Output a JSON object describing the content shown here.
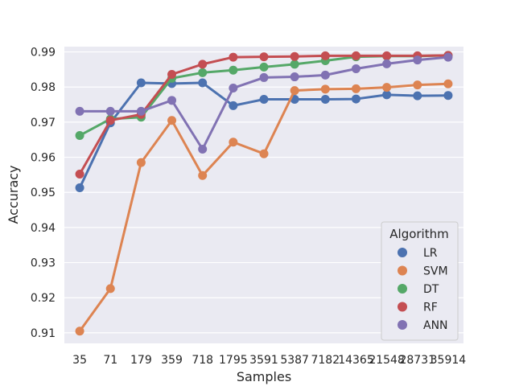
{
  "chart_data": {
    "type": "line",
    "xlabel": "Samples",
    "ylabel": "Accuracy",
    "categories": [
      "35",
      "71",
      "179",
      "359",
      "718",
      "1795",
      "3591",
      "5387",
      "7182",
      "14365",
      "21548",
      "28731",
      "35914"
    ],
    "ylim": [
      0.907,
      0.9915
    ],
    "yticks": [
      0.91,
      0.92,
      0.93,
      0.94,
      0.95,
      0.96,
      0.97,
      0.98,
      0.99
    ],
    "ytick_labels": [
      "0.91",
      "0.92",
      "0.93",
      "0.94",
      "0.95",
      "0.96",
      "0.97",
      "0.98",
      "0.99"
    ],
    "grid": true,
    "legend": {
      "title": "Algorithm",
      "placement": "lower-right"
    },
    "series": [
      {
        "name": "LR",
        "color": "#4c72b0",
        "values": [
          0.9513,
          0.9698,
          0.9812,
          0.981,
          0.9812,
          0.9747,
          0.9765,
          0.9765,
          0.9765,
          0.9766,
          0.9778,
          0.9775,
          0.9776
        ]
      },
      {
        "name": "SVM",
        "color": "#dd8452",
        "values": [
          0.9105,
          0.9226,
          0.9585,
          0.9705,
          0.9548,
          0.9643,
          0.961,
          0.979,
          0.9794,
          0.9795,
          0.9799,
          0.9806,
          0.9809
        ]
      },
      {
        "name": "DT",
        "color": "#55a868",
        "values": [
          0.9662,
          0.9709,
          0.9714,
          0.9825,
          0.9841,
          0.9848,
          0.9857,
          0.9865,
          0.9875,
          0.9886,
          0.9888,
          0.9888,
          0.989
        ]
      },
      {
        "name": "RF",
        "color": "#c44e52",
        "values": [
          0.9552,
          0.9705,
          0.9722,
          0.9836,
          0.9865,
          0.9885,
          0.9886,
          0.9887,
          0.9889,
          0.9889,
          0.9889,
          0.9889,
          0.989
        ]
      },
      {
        "name": "ANN",
        "color": "#8172b3",
        "values": [
          0.9731,
          0.9731,
          0.9731,
          0.9762,
          0.9623,
          0.9797,
          0.9827,
          0.9829,
          0.9834,
          0.9852,
          0.9866,
          0.9877,
          0.9885
        ]
      }
    ]
  }
}
